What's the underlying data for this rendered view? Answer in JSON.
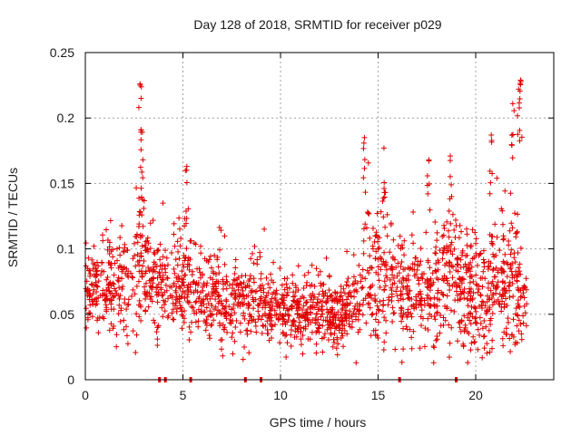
{
  "chart_data": {
    "type": "scatter",
    "title": "Day 128 of 2018, SRMTID for receiver p029",
    "xlabel": "GPS time / hours",
    "ylabel": "SRMTID / TECUs",
    "xlim": [
      0,
      24
    ],
    "ylim": [
      0,
      0.25
    ],
    "xticks": [
      0,
      5,
      10,
      15,
      20
    ],
    "xtick_labels": [
      "0",
      "5",
      "10",
      "15",
      "20"
    ],
    "yticks": [
      0,
      0.05,
      0.1,
      0.15,
      0.2,
      0.25
    ],
    "ytick_labels": [
      "0",
      "0.05",
      "0.1",
      "0.15",
      "0.2",
      "0.25"
    ],
    "grid": true,
    "marker": "+",
    "color": "#e00000",
    "series": [
      {
        "name": "SRMTID",
        "note": "approx. 2000 points; profile of typical level and spread",
        "profile_hours": [
          0,
          1,
          2,
          2.8,
          3.5,
          4.5,
          5.2,
          6,
          7,
          8,
          9,
          10,
          11,
          12,
          13,
          14,
          14.5,
          15.2,
          16,
          17,
          18,
          18.8,
          19.5,
          20.3,
          21,
          21.8,
          22.6
        ],
        "profile_median": [
          0.072,
          0.072,
          0.068,
          0.085,
          0.075,
          0.072,
          0.08,
          0.07,
          0.062,
          0.058,
          0.06,
          0.052,
          0.05,
          0.052,
          0.05,
          0.062,
          0.085,
          0.08,
          0.07,
          0.066,
          0.07,
          0.08,
          0.065,
          0.068,
          0.07,
          0.078,
          0.06
        ],
        "profile_spread": [
          0.016,
          0.018,
          0.02,
          0.03,
          0.02,
          0.017,
          0.022,
          0.016,
          0.016,
          0.015,
          0.016,
          0.014,
          0.013,
          0.014,
          0.013,
          0.018,
          0.03,
          0.025,
          0.022,
          0.02,
          0.024,
          0.026,
          0.02,
          0.022,
          0.026,
          0.03,
          0.018
        ],
        "zero_points_x": [
          3.8,
          4.1,
          5.4,
          8.2,
          9.0,
          16.1,
          19.0
        ],
        "peaks": [
          {
            "x": 2.8,
            "y": 0.226
          },
          {
            "x": 2.85,
            "y": 0.191
          },
          {
            "x": 2.95,
            "y": 0.168
          },
          {
            "x": 5.2,
            "y": 0.163
          },
          {
            "x": 14.3,
            "y": 0.185
          },
          {
            "x": 15.3,
            "y": 0.177
          },
          {
            "x": 17.6,
            "y": 0.168
          },
          {
            "x": 18.7,
            "y": 0.171
          },
          {
            "x": 20.8,
            "y": 0.187
          },
          {
            "x": 22.3,
            "y": 0.229
          },
          {
            "x": 22.2,
            "y": 0.222
          },
          {
            "x": 21.9,
            "y": 0.211
          }
        ]
      }
    ]
  }
}
